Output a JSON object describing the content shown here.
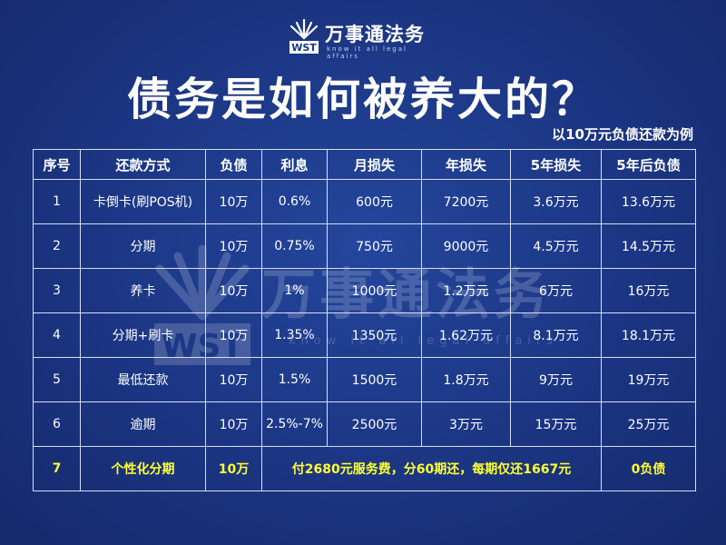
{
  "logo": {
    "mark_text": "WST",
    "name": "万事通法务",
    "tagline": "know it all legal affairs",
    "color": "#ffffff"
  },
  "title": "债务是如何被养大的？",
  "subtitle": "以10万元负债还款为例",
  "watermark": {
    "mark_text": "WST",
    "name": "万事通法务",
    "tagline": "know it all legal affairs"
  },
  "table": {
    "headers": [
      "序号",
      "还款方式",
      "负债",
      "利息",
      "月损失",
      "年损失",
      "5年损失",
      "5年后负债"
    ],
    "rows": [
      [
        "1",
        "卡倒卡(刷POS机)",
        "10万",
        "0.6%",
        "600元",
        "7200元",
        "3.6万元",
        "13.6万元"
      ],
      [
        "2",
        "分期",
        "10万",
        "0.75%",
        "750元",
        "9000元",
        "4.5万元",
        "14.5万元"
      ],
      [
        "3",
        "养卡",
        "10万",
        "1%",
        "1000元",
        "1.2万元",
        "6万元",
        "16万元"
      ],
      [
        "4",
        "分期+刷卡",
        "10万",
        "1.35%",
        "1350元",
        "1.62万元",
        "8.1万元",
        "18.1万元"
      ],
      [
        "5",
        "最低还款",
        "10万",
        "1.5%",
        "1500元",
        "1.8万元",
        "9万元",
        "19万元"
      ],
      [
        "6",
        "逾期",
        "10万",
        "2.5%-7%",
        "2500元",
        "3万元",
        "15万元",
        "25万元"
      ]
    ],
    "highlight_row": {
      "index": "7",
      "method": "个性化分期",
      "debt": "10万",
      "note": "付2680元服务费，分60期还，每期仅还1667元",
      "final": "0负债"
    }
  },
  "colors": {
    "background": "#1b3582",
    "text": "#ffffff",
    "highlight": "#ffff33",
    "border": "#d7def2"
  }
}
